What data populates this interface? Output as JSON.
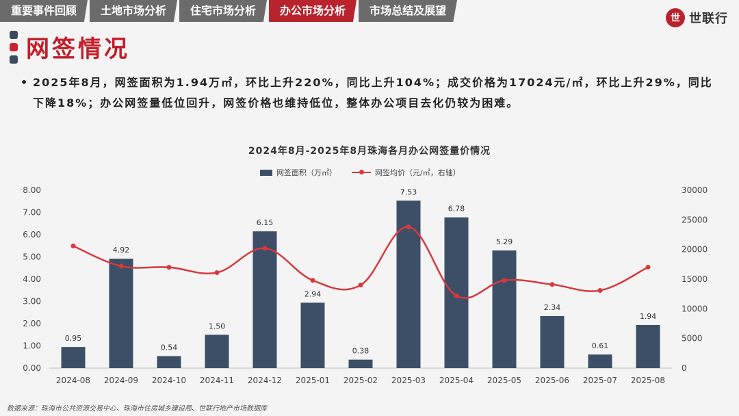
{
  "tabs": [
    {
      "label": "重要事件回顾",
      "active": false
    },
    {
      "label": "土地市场分析",
      "active": false
    },
    {
      "label": "住宅市场分析",
      "active": false
    },
    {
      "label": "办公市场分析",
      "active": true
    },
    {
      "label": "市场总结及展望",
      "active": false
    }
  ],
  "brand": {
    "name": "世联行",
    "mark": "世"
  },
  "page_title": "网签情况",
  "summary": "2025年8月，网签面积为1.94万㎡，环比上升220%，同比上升104%；成交价格为17024元/㎡，环比上升29%，同比下降18%；办公网签量低位回升，网签价格也维持低位，整体办公项目去化仍较为困难。",
  "colors": {
    "accent": "#b8232d",
    "bar": "#3c4f66",
    "line": "#d9383f",
    "tab": "#6b6b6b"
  },
  "chart_data": {
    "type": "bar",
    "title": "2024年8月-2025年8月珠海各月办公网签量价情况",
    "categories": [
      "2024-08",
      "2024-09",
      "2024-10",
      "2024-11",
      "2024-12",
      "2025-01",
      "2025-02",
      "2025-03",
      "2025-04",
      "2025-05",
      "2025-06",
      "2025-07",
      "2025-08"
    ],
    "series": [
      {
        "name": "网签面积（万㎡）",
        "type": "bar",
        "axis": "left",
        "values": [
          0.95,
          4.92,
          0.54,
          1.5,
          6.15,
          2.94,
          0.38,
          7.53,
          6.78,
          5.29,
          2.34,
          0.61,
          1.94
        ]
      },
      {
        "name": "网签均价（元/㎡，右轴）",
        "type": "line",
        "axis": "right",
        "values": [
          20600,
          17200,
          17000,
          16100,
          20200,
          14800,
          14000,
          23800,
          12200,
          14800,
          14100,
          13100,
          17024
        ]
      }
    ],
    "y_left": {
      "min": 0,
      "max": 8,
      "step": 1,
      "ticks": [
        "0.00",
        "1.00",
        "2.00",
        "3.00",
        "4.00",
        "5.00",
        "6.00",
        "7.00",
        "8.00"
      ]
    },
    "y_right": {
      "min": 0,
      "max": 30000,
      "step": 5000,
      "ticks": [
        "0",
        "5000",
        "10000",
        "15000",
        "20000",
        "25000",
        "30000"
      ]
    },
    "legend": "top-center",
    "bar_labels": [
      "0.95",
      "4.92",
      "0.54",
      "1.50",
      "6.15",
      "2.94",
      "0.38",
      "7.53",
      "6.78",
      "5.29",
      "2.34",
      "0.61",
      "1.94"
    ]
  },
  "source": "数据来源：珠海市公共资源交易中心、珠海市住房城乡建设局、世联行地产市场数据库"
}
